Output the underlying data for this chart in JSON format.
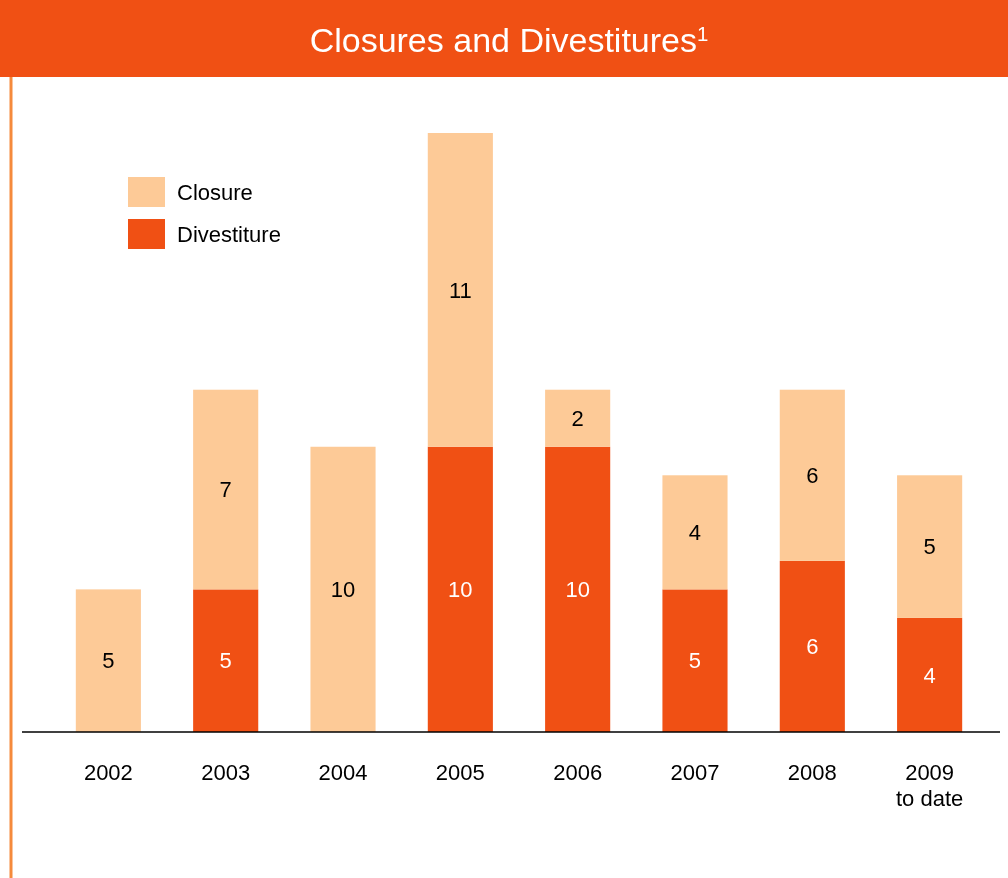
{
  "chart_data": {
    "type": "bar",
    "title": "Closures and Divestitures$^{1}$",
    "stacked": true,
    "data_labels": true,
    "legend": "top left",
    "categories": [
      "2002",
      "2003",
      "2004",
      "2005",
      "2006",
      "2007",
      "2008",
      "2009 to date"
    ],
    "series": [
      {
        "name": "Divestiture",
        "color": "#f05014",
        "values": [
          null,
          5,
          null,
          10,
          10,
          5,
          6,
          4
        ]
      },
      {
        "name": "Closure",
        "color": "#fdca97",
        "values": [
          5,
          7,
          10,
          11,
          2,
          4,
          6,
          5
        ]
      }
    ]
  }
}
